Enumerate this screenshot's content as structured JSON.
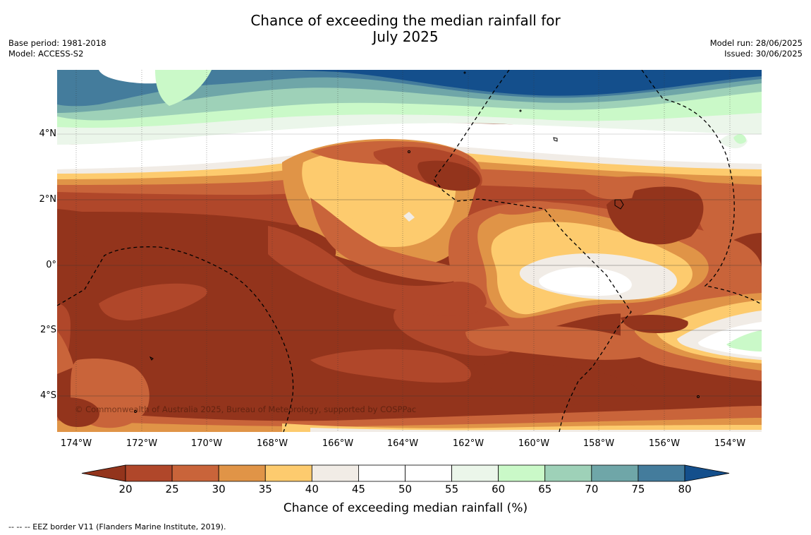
{
  "title_line1": "Chance of exceeding the median rainfall for",
  "title_line2": "July 2025",
  "base_period": "Base period: 1981-2018",
  "model": "Model: ACCESS-S2",
  "model_run": "Model run: 28/06/2025",
  "issued": "Issued: 30/06/2025",
  "copyright": "© Commonwealth of Australia 2025, Bureau of Meteorology, supported by COSPPac",
  "lat_labels": [
    "4°N",
    "2°N",
    "0°",
    "2°S",
    "4°S"
  ],
  "lon_labels": [
    "174°W",
    "172°W",
    "170°W",
    "168°W",
    "166°W",
    "164°W",
    "162°W",
    "160°W",
    "158°W",
    "156°W",
    "154°W"
  ],
  "colorbar": {
    "label": "Chance of exceeding median rainfall (%)",
    "ticks": [
      "20",
      "25",
      "30",
      "35",
      "40",
      "45",
      "50",
      "55",
      "60",
      "65",
      "70",
      "75",
      "80"
    ],
    "colors": [
      "#93341c",
      "#b0472a",
      "#c9643a",
      "#e09447",
      "#fdcb6e",
      "#f1ece6",
      "#ffffff",
      "#ffffff",
      "#ebf6ea",
      "#caf9c8",
      "#9ed1b8",
      "#6fa6a8",
      "#447c9c",
      "#144f8c"
    ]
  },
  "eez_note": "-- -- -- EEZ border V11 (Flanders Marine Institute, 2019)."
}
